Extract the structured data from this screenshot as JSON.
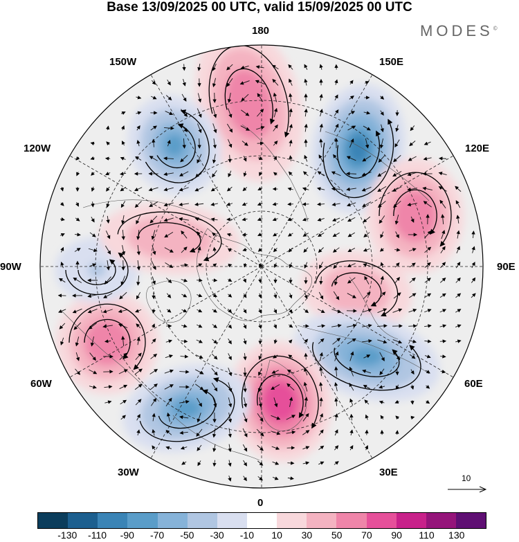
{
  "title": "Base 13/09/2025 00 UTC, valid 15/09/2025 00 UTC",
  "brand": "MODES",
  "brand_mark": "©",
  "longitude_labels": {
    "top": "180",
    "bottom": "0",
    "left": "90W",
    "right": "90E",
    "upper_left_150": "150W",
    "upper_left_120": "120W",
    "lower_left_60": "60W",
    "lower_left_30": "30W",
    "upper_right_150": "150E",
    "upper_right_120": "120E",
    "lower_right_60": "60E",
    "lower_right_30": "30E"
  },
  "reference_vector": {
    "value": "10"
  },
  "colorbar": {
    "colors": [
      "#0b3d5c",
      "#1c5f8f",
      "#3a84b6",
      "#5a9dc9",
      "#86b3d9",
      "#b0c6e2",
      "#d9dff0",
      "#ffffff",
      "#f8d8dc",
      "#f4b3c1",
      "#ef85a9",
      "#e6509a",
      "#c8218a",
      "#95147a",
      "#5f0f73"
    ],
    "ticks": [
      "-130",
      "-110",
      "-90",
      "-70",
      "-50",
      "-30",
      "-10",
      "10",
      "30",
      "50",
      "70",
      "90",
      "110",
      "130"
    ]
  },
  "anomaly_centers": [
    {
      "name": "pacific-high",
      "sign": "positive",
      "value": 70
    },
    {
      "name": "east-siberia-low",
      "sign": "negative",
      "value": -90
    },
    {
      "name": "central-siberia-high",
      "sign": "positive",
      "value": 70
    },
    {
      "name": "ural-high",
      "sign": "positive",
      "value": 50
    },
    {
      "name": "west-siberia-low",
      "sign": "negative",
      "value": -70
    },
    {
      "name": "europe-high",
      "sign": "positive",
      "value": 90
    },
    {
      "name": "north-atlantic-low",
      "sign": "negative",
      "value": -70
    },
    {
      "name": "west-atlantic-high",
      "sign": "positive",
      "value": 70
    },
    {
      "name": "canada-low",
      "sign": "negative",
      "value": -30
    },
    {
      "name": "canada-high",
      "sign": "positive",
      "value": 50
    },
    {
      "name": "alaska-low",
      "sign": "negative",
      "value": -70
    }
  ]
}
